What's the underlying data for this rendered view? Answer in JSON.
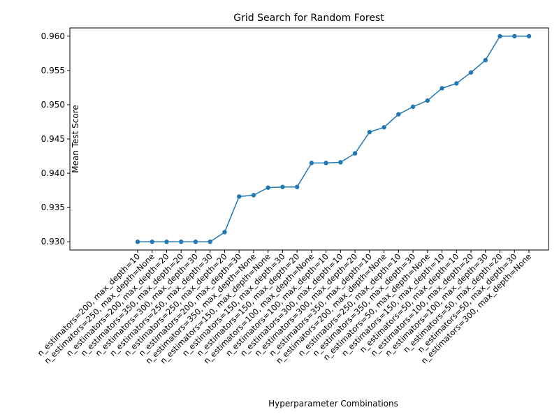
{
  "chart_data": {
    "type": "line",
    "title": "Grid Search for Random Forest",
    "xlabel": "Hyperparameter Combinations",
    "ylabel": "Mean Test Score",
    "categories": [
      "n_estimators=200, max_depth=10",
      "n_estimators=250, max_depth=None",
      "n_estimators=200, max_depth=20",
      "n_estimators=350, max_depth=20",
      "n_estimators=300, max_depth=30",
      "n_estimators=250, max_depth=30",
      "n_estimators=250, max_depth=20",
      "n_estimators=200, max_depth=30",
      "n_estimators=350, max_depth=None",
      "n_estimators=150, max_depth=None",
      "n_estimators=150, max_depth=30",
      "n_estimators=150, max_depth=20",
      "n_estimators=100, max_depth=None",
      "n_estimators=100, max_depth=10",
      "n_estimators=300, max_depth=10",
      "n_estimators=300, max_depth=20",
      "n_estimators=350, max_depth=10",
      "n_estimators=200, max_depth=None",
      "n_estimators=250, max_depth=10",
      "n_estimators=350, max_depth=30",
      "n_estimators=50, max_depth=None",
      "n_estimators=150, max_depth=10",
      "n_estimators=50, max_depth=10",
      "n_estimators=100, max_depth=20",
      "n_estimators=100, max_depth=30",
      "n_estimators=50, max_depth=20",
      "n_estimators=50, max_depth=30",
      "n_estimators=300, max_depth=None"
    ],
    "series": [
      {
        "name": "Mean Test Score",
        "color": "#1f77b4",
        "values": [
          0.93,
          0.93,
          0.93,
          0.93,
          0.93,
          0.93,
          0.9314,
          0.9366,
          0.9368,
          0.9379,
          0.938,
          0.938,
          0.9415,
          0.9415,
          0.9416,
          0.9429,
          0.946,
          0.9467,
          0.9486,
          0.9497,
          0.9506,
          0.9524,
          0.9531,
          0.9547,
          0.9565,
          0.96,
          0.96,
          0.96
        ]
      }
    ],
    "ylim": [
      0.9288,
      0.9612
    ],
    "yticks": [
      {
        "value": 0.93,
        "label": "0.930"
      },
      {
        "value": 0.935,
        "label": "0.935"
      },
      {
        "value": 0.94,
        "label": "0.940"
      },
      {
        "value": 0.945,
        "label": "0.945"
      },
      {
        "value": 0.95,
        "label": "0.950"
      },
      {
        "value": 0.955,
        "label": "0.955"
      },
      {
        "value": 0.96,
        "label": "0.960"
      }
    ],
    "grid": false
  }
}
